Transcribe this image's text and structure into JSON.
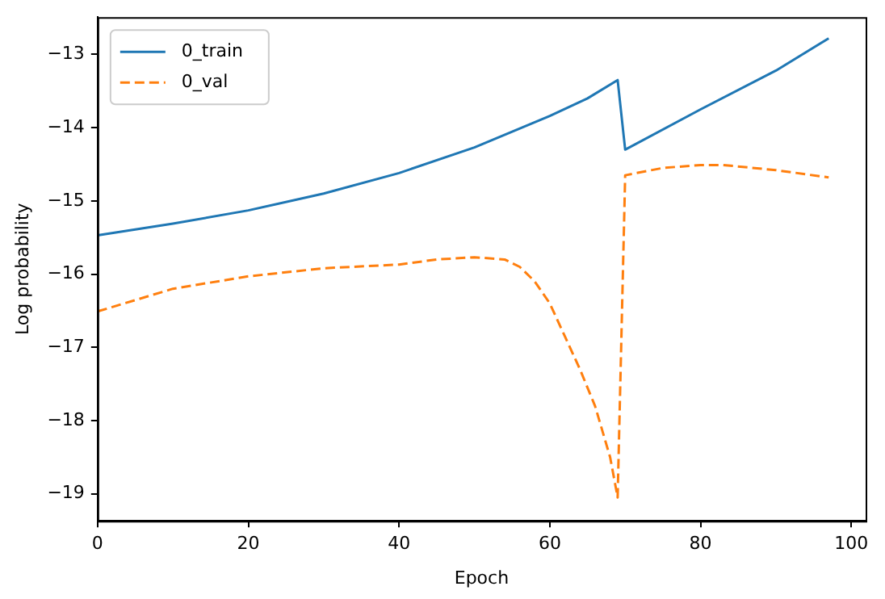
{
  "chart_data": {
    "type": "line",
    "xlabel": "Epoch",
    "ylabel": "Log probability",
    "xlim": [
      0,
      101.9
    ],
    "xticks": [
      0,
      20,
      40,
      60,
      80,
      100
    ],
    "ylim": [
      -19.37,
      -12.49
    ],
    "yticks": [
      -19,
      -18,
      -17,
      -16,
      -15,
      -14,
      -13
    ],
    "grid": false,
    "legend": "top left",
    "marker": "none",
    "series": [
      {
        "name": "0_train",
        "color": "#1f77b4",
        "line_style": "solid",
        "x": [
          0,
          10,
          20,
          30,
          40,
          50,
          60,
          65,
          69,
          70,
          80,
          90,
          97
        ],
        "values": [
          -15.47,
          -15.31,
          -15.13,
          -14.9,
          -14.62,
          -14.27,
          -13.84,
          -13.6,
          -13.35,
          -14.3,
          -13.75,
          -13.22,
          -12.78
        ]
      },
      {
        "name": "0_val",
        "color": "#ff7f0e",
        "line_style": "dashed",
        "x": [
          0,
          10,
          20,
          30,
          40,
          45,
          50,
          54,
          56,
          58,
          60,
          62,
          64,
          66,
          68,
          69,
          70,
          75,
          80,
          83,
          90,
          97
        ],
        "values": [
          -16.51,
          -16.2,
          -16.03,
          -15.92,
          -15.87,
          -15.8,
          -15.77,
          -15.8,
          -15.9,
          -16.1,
          -16.4,
          -16.85,
          -17.3,
          -17.8,
          -18.5,
          -19.05,
          -14.65,
          -14.55,
          -14.51,
          -14.51,
          -14.58,
          -14.68
        ]
      }
    ]
  }
}
